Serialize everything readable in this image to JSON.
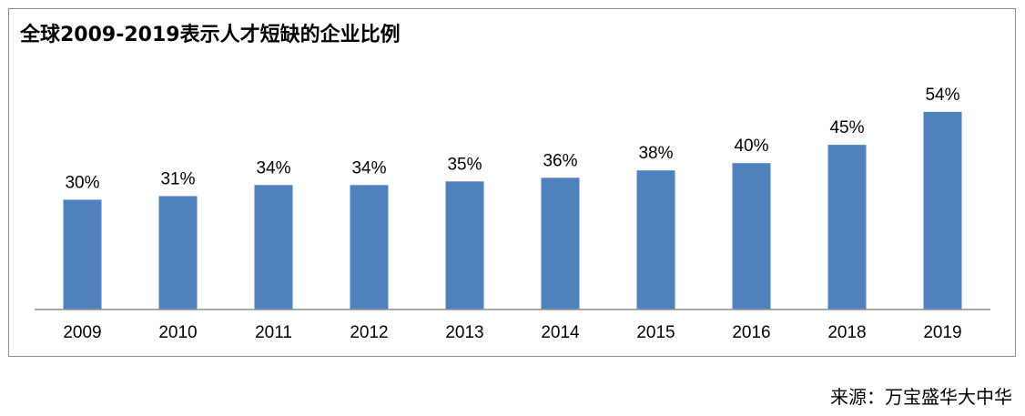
{
  "chart_data": {
    "type": "bar",
    "title": "全球2009-2019表示人才短缺的企业比例",
    "categories": [
      "2009",
      "2010",
      "2011",
      "2012",
      "2013",
      "2014",
      "2015",
      "2016",
      "2018",
      "2019"
    ],
    "values": [
      30,
      31,
      34,
      34,
      35,
      36,
      38,
      40,
      45,
      54
    ],
    "value_labels": [
      "30%",
      "31%",
      "34%",
      "34%",
      "35%",
      "36%",
      "38%",
      "40%",
      "45%",
      "54%"
    ],
    "unit": "%",
    "xlabel": "",
    "ylabel": "",
    "ylim": [
      0,
      60
    ],
    "grid": false,
    "bar_color": "#4f81bd"
  },
  "source": "来源：万宝盛华大中华"
}
